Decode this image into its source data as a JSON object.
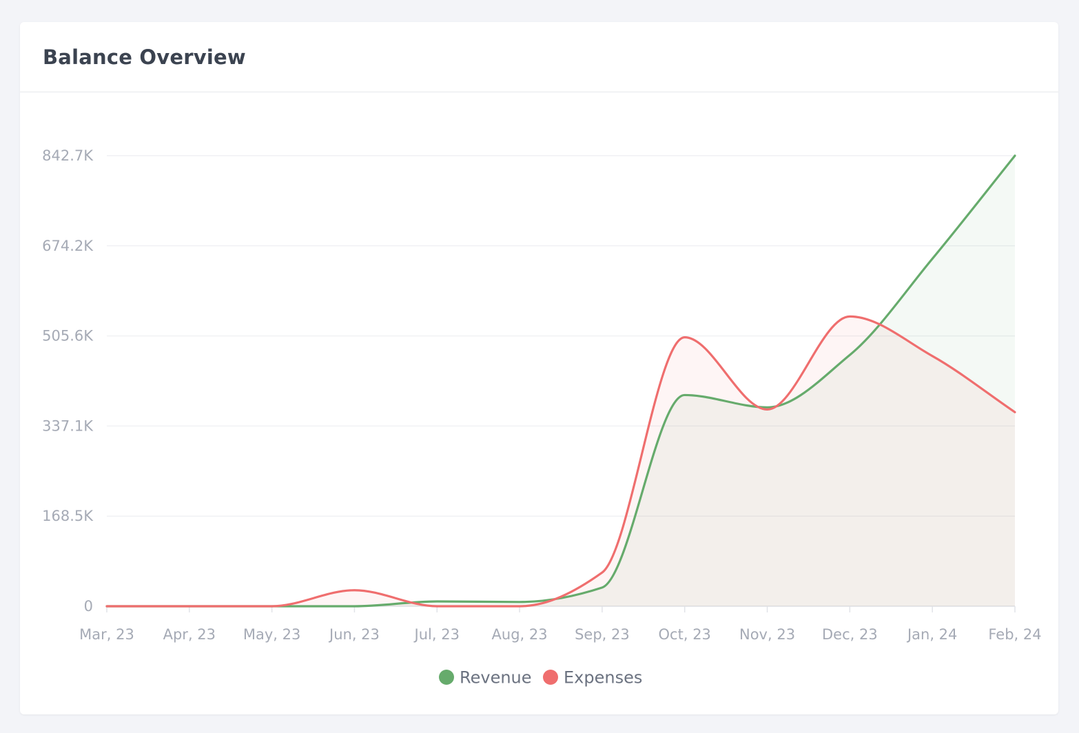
{
  "card": {
    "title": "Balance Overview"
  },
  "chart_data": {
    "type": "area",
    "title": "",
    "xlabel": "",
    "ylabel": "",
    "categories": [
      "Mar, 23",
      "Apr, 23",
      "May, 23",
      "Jun, 23",
      "Jul, 23",
      "Aug, 23",
      "Sep, 23",
      "Oct, 23",
      "Nov, 23",
      "Dec, 23",
      "Jan, 24",
      "Feb, 24"
    ],
    "y_ticks": [
      {
        "value": 0,
        "label": "0"
      },
      {
        "value": 168540,
        "label": "168.5K"
      },
      {
        "value": 337080,
        "label": "337.1K"
      },
      {
        "value": 505620,
        "label": "505.6K"
      },
      {
        "value": 674160,
        "label": "674.2K"
      },
      {
        "value": 842700,
        "label": "842.7K"
      }
    ],
    "ylim": [
      0,
      842700
    ],
    "grid": true,
    "legend_position": "bottom-center",
    "series": [
      {
        "name": "Revenue",
        "color": "#66ab6c",
        "values": [
          0,
          0,
          0,
          0,
          9000,
          8000,
          35000,
          395000,
          372000,
          470000,
          650000,
          842700
        ]
      },
      {
        "name": "Expenses",
        "color": "#ef6e6e",
        "values": [
          0,
          0,
          0,
          30000,
          0,
          0,
          63000,
          503000,
          368000,
          542000,
          468000,
          363000
        ]
      }
    ]
  }
}
